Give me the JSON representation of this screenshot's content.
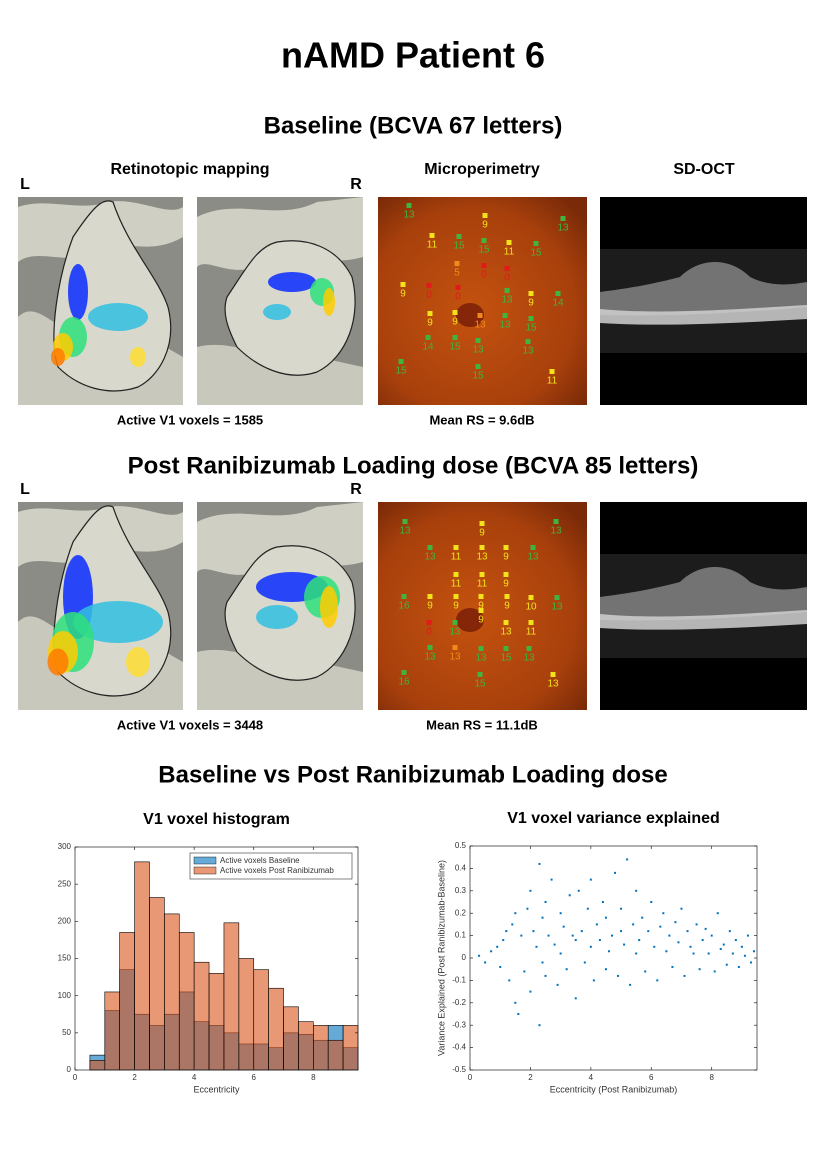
{
  "title": "nAMD Patient 6",
  "column_headers": [
    "Retinotopic mapping",
    "Microperimetry",
    "SD-OCT"
  ],
  "hemispheres": [
    "L",
    "R"
  ],
  "panels": [
    {
      "heading": "Baseline (BCVA 67 letters)",
      "voxels": "Active V1 voxels = 1585",
      "mean_rs": "Mean RS = 9.6dB",
      "microperimetry": [
        {
          "value": 13,
          "color": "#3fb43f"
        },
        {
          "value": 9,
          "color": "#f2e21a"
        },
        {
          "value": 13,
          "color": "#3fb43f"
        },
        {
          "value": 11,
          "color": "#f2e21a"
        },
        {
          "value": 15,
          "color": "#3fb43f"
        },
        {
          "value": 15,
          "color": "#3fb43f"
        },
        {
          "value": 11,
          "color": "#f2e21a"
        },
        {
          "value": 15,
          "color": "#3fb43f"
        },
        {
          "value": 5,
          "color": "#f08a1a"
        },
        {
          "value": 0,
          "color": "#e21a1a"
        },
        {
          "value": 0,
          "color": "#e21a1a"
        },
        {
          "value": 9,
          "color": "#f2e21a"
        },
        {
          "value": 0,
          "color": "#e21a1a"
        },
        {
          "value": 0,
          "color": "#e21a1a"
        },
        {
          "value": 13,
          "color": "#3fb43f"
        },
        {
          "value": 9,
          "color": "#f2e21a"
        },
        {
          "value": 14,
          "color": "#3fb43f"
        },
        {
          "value": 9,
          "color": "#f2e21a"
        },
        {
          "value": 9,
          "color": "#f2e21a"
        },
        {
          "value": 13,
          "color": "#f08a1a"
        },
        {
          "value": 13,
          "color": "#3fb43f"
        },
        {
          "value": 15,
          "color": "#3fb43f"
        },
        {
          "value": 14,
          "color": "#3fb43f"
        },
        {
          "value": 15,
          "color": "#3fb43f"
        },
        {
          "value": 13,
          "color": "#3fb43f"
        },
        {
          "value": 13,
          "color": "#3fb43f"
        },
        {
          "value": 15,
          "color": "#3fb43f"
        },
        {
          "value": 15,
          "color": "#3fb43f"
        },
        {
          "value": 11,
          "color": "#f2e21a"
        }
      ]
    },
    {
      "heading": "Post Ranibizumab Loading dose (BCVA 85 letters)",
      "voxels": "Active V1 voxels = 3448",
      "mean_rs": "Mean RS = 11.1dB",
      "microperimetry": [
        {
          "value": 13,
          "color": "#3fb43f"
        },
        {
          "value": 9,
          "color": "#f2e21a"
        },
        {
          "value": 13,
          "color": "#3fb43f"
        },
        {
          "value": 13,
          "color": "#3fb43f"
        },
        {
          "value": 11,
          "color": "#f2e21a"
        },
        {
          "value": 13,
          "color": "#f2e21a"
        },
        {
          "value": 9,
          "color": "#f2e21a"
        },
        {
          "value": 13,
          "color": "#3fb43f"
        },
        {
          "value": 11,
          "color": "#f2e21a"
        },
        {
          "value": 11,
          "color": "#f2e21a"
        },
        {
          "value": 9,
          "color": "#f2e21a"
        },
        {
          "value": 16,
          "color": "#3fb43f"
        },
        {
          "value": 9,
          "color": "#f2e21a"
        },
        {
          "value": 9,
          "color": "#f2e21a"
        },
        {
          "value": 9,
          "color": "#f2e21a"
        },
        {
          "value": 9,
          "color": "#f2e21a"
        },
        {
          "value": 10,
          "color": "#f2e21a"
        },
        {
          "value": 13,
          "color": "#3fb43f"
        },
        {
          "value": 0,
          "color": "#e21a1a"
        },
        {
          "value": 13,
          "color": "#3fb43f"
        },
        {
          "value": 9,
          "color": "#f2e21a"
        },
        {
          "value": 13,
          "color": "#f2e21a"
        },
        {
          "value": 11,
          "color": "#f2e21a"
        },
        {
          "value": 13,
          "color": "#3fb43f"
        },
        {
          "value": 13,
          "color": "#f08a1a"
        },
        {
          "value": 13,
          "color": "#3fb43f"
        },
        {
          "value": 15,
          "color": "#3fb43f"
        },
        {
          "value": 13,
          "color": "#3fb43f"
        },
        {
          "value": 16,
          "color": "#3fb43f"
        },
        {
          "value": 15,
          "color": "#3fb43f"
        },
        {
          "value": 13,
          "color": "#f2e21a"
        }
      ]
    }
  ],
  "comparison_heading": "Baseline vs Post Ranibizumab Loading dose",
  "chart_data": [
    {
      "type": "histogram",
      "title": "V1 voxel histogram",
      "xlabel": "Eccentricity",
      "bins": [
        0.5,
        1,
        1.5,
        2,
        2.5,
        3,
        3.5,
        4,
        4.5,
        5,
        5.5,
        6,
        6.5,
        7,
        7.5,
        8,
        8.5,
        9,
        9.5
      ],
      "series": [
        {
          "name": "Active voxels Baseline",
          "color": "#0072bd",
          "values": [
            20,
            80,
            135,
            75,
            60,
            75,
            105,
            65,
            60,
            50,
            35,
            35,
            30,
            50,
            48,
            40,
            60,
            30
          ]
        },
        {
          "name": "Active voxels Post Ranibizumab",
          "color": "#d95319",
          "values": [
            13,
            105,
            185,
            280,
            232,
            210,
            185,
            145,
            130,
            198,
            150,
            135,
            110,
            85,
            65,
            60,
            40,
            60
          ]
        }
      ],
      "xlim": [
        0,
        9.5
      ],
      "ylim": [
        0,
        300
      ],
      "xticks": [
        0,
        2,
        4,
        6,
        8
      ],
      "yticks": [
        0,
        50,
        100,
        150,
        200,
        250,
        300
      ],
      "legend": "upper right"
    },
    {
      "type": "scatter",
      "title": "V1 voxel variance explained",
      "xlabel": "Eccentricity (Post Ranibizumab)",
      "ylabel": "Variance Explained (Post Ranibizumab-Baseline)",
      "color": "#0072bd",
      "x": [
        0.3,
        0.5,
        0.7,
        0.9,
        1.0,
        1.1,
        1.2,
        1.3,
        1.4,
        1.5,
        1.5,
        1.6,
        1.7,
        1.8,
        1.9,
        2.0,
        2.0,
        2.1,
        2.2,
        2.3,
        2.3,
        2.4,
        2.5,
        2.5,
        2.6,
        2.7,
        2.8,
        2.9,
        3.0,
        3.0,
        3.1,
        3.2,
        3.3,
        3.4,
        3.5,
        3.5,
        3.6,
        3.7,
        3.8,
        3.9,
        4.0,
        4.0,
        4.1,
        4.2,
        4.3,
        4.4,
        4.5,
        4.5,
        4.6,
        4.7,
        4.8,
        4.9,
        5.0,
        5.0,
        5.1,
        5.2,
        5.3,
        5.4,
        5.5,
        5.5,
        5.6,
        5.7,
        5.8,
        5.9,
        6.0,
        6.1,
        6.2,
        6.3,
        6.4,
        6.5,
        6.6,
        6.7,
        6.8,
        6.9,
        7.0,
        7.1,
        7.2,
        7.3,
        7.4,
        7.5,
        7.6,
        7.7,
        7.8,
        7.9,
        8.0,
        8.1,
        8.2,
        8.3,
        8.4,
        8.5,
        8.6,
        8.7,
        8.8,
        8.9,
        9.0,
        9.1,
        9.2,
        9.3,
        9.4,
        2.4
      ],
      "y": [
        0.01,
        -0.02,
        0.03,
        0.05,
        -0.04,
        0.08,
        0.12,
        -0.1,
        0.15,
        -0.2,
        0.2,
        -0.25,
        0.1,
        -0.06,
        0.22,
        0.3,
        -0.15,
        0.12,
        0.05,
        0.42,
        -0.3,
        0.18,
        0.25,
        -0.08,
        0.1,
        0.35,
        0.06,
        -0.12,
        0.2,
        0.02,
        0.14,
        -0.05,
        0.28,
        0.1,
        0.08,
        -0.18,
        0.3,
        0.12,
        -0.02,
        0.22,
        0.35,
        0.05,
        -0.1,
        0.15,
        0.08,
        0.25,
        -0.05,
        0.18,
        0.03,
        0.1,
        0.38,
        -0.08,
        0.22,
        0.12,
        0.06,
        0.44,
        -0.12,
        0.15,
        0.3,
        0.02,
        0.08,
        0.18,
        -0.06,
        0.12,
        0.25,
        0.05,
        -0.1,
        0.14,
        0.2,
        0.03,
        0.1,
        -0.04,
        0.16,
        0.07,
        0.22,
        -0.08,
        0.12,
        0.05,
        0.02,
        0.15,
        -0.05,
        0.08,
        0.13,
        0.02,
        0.1,
        -0.06,
        0.2,
        0.04,
        0.06,
        -0.03,
        0.12,
        0.02,
        0.08,
        -0.04,
        0.05,
        0.01,
        0.1,
        -0.02,
        0.03,
        -0.02
      ],
      "xlim": [
        0,
        9.5
      ],
      "ylim": [
        -0.5,
        0.5
      ],
      "xticks": [
        0,
        2,
        4,
        6,
        8
      ],
      "yticks": [
        -0.5,
        -0.4,
        -0.3,
        -0.2,
        -0.1,
        0,
        0.1,
        0.2,
        0.3,
        0.4,
        0.5
      ]
    }
  ]
}
